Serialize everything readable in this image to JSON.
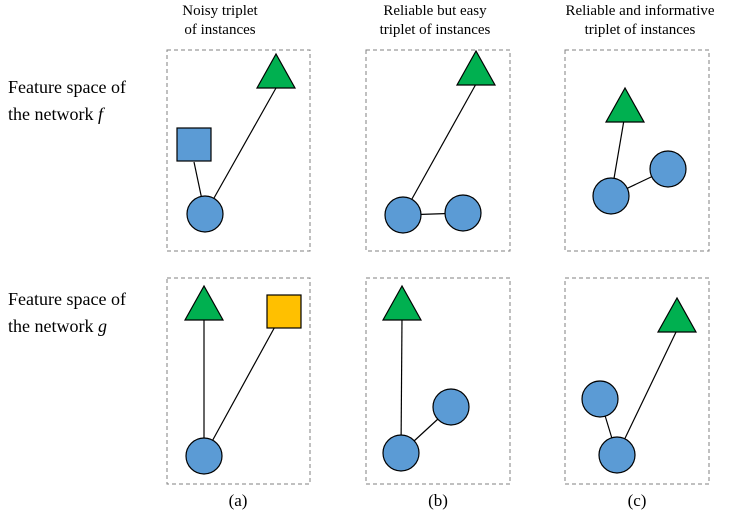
{
  "columns": [
    {
      "title_line1": "Noisy triplet",
      "title_line2": "of instances",
      "caption": "(a)"
    },
    {
      "title_line1": "Reliable but easy",
      "title_line2": "triplet of instances",
      "caption": "(b)"
    },
    {
      "title_line1": "Reliable and informative",
      "title_line2": "triplet of instances",
      "caption": "(c)"
    }
  ],
  "rows": [
    {
      "label_line1": "Feature space of",
      "label_line2_prefix": "the network ",
      "label_line2_var": "f"
    },
    {
      "label_line1": "Feature space of",
      "label_line2_prefix": "the network ",
      "label_line2_var": "g"
    }
  ],
  "colors": {
    "circle": "#5b9bd5",
    "triangle": "#00b050",
    "square_blue": "#5b9bd5",
    "square_yellow": "#ffc000",
    "stroke": "#000000",
    "box_border": "#808080"
  }
}
